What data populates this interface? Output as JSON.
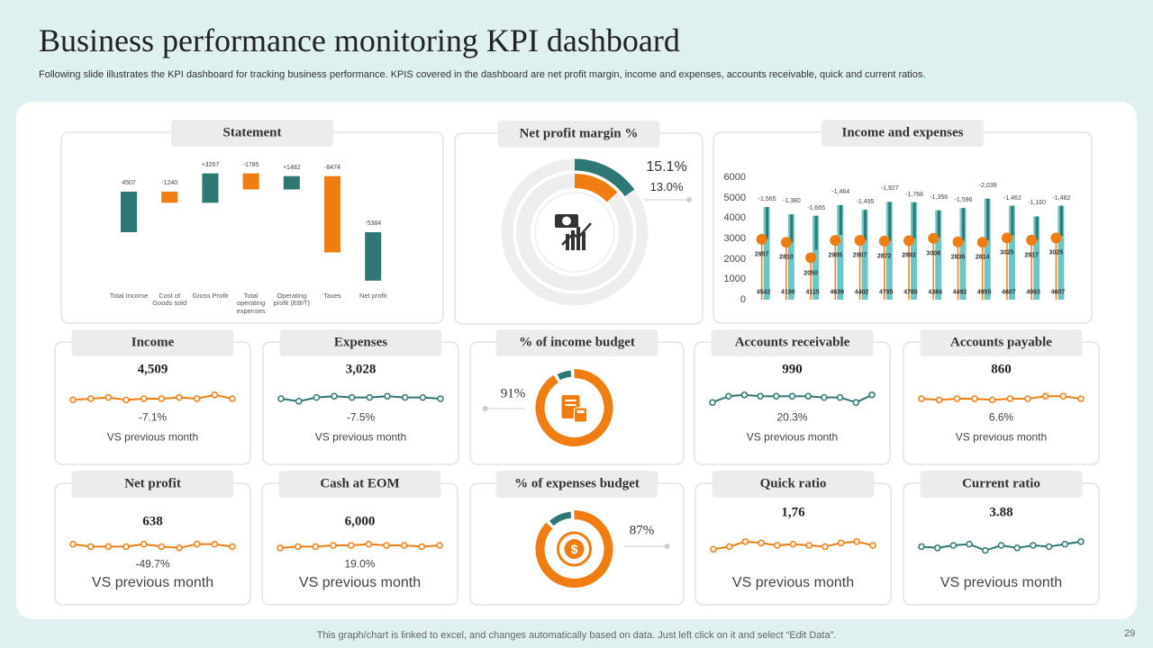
{
  "header": {
    "title": "Business performance monitoring KPI dashboard",
    "subtitle": "Following slide illustrates the KPI dashboard for tracking business performance. KPIS covered in the dashboard are net profit margin, income and expenses, accounts receivable, quick and current ratios."
  },
  "footer": {
    "note": "This graph/chart is linked to excel,  and changes automatically based on data. Just left click on it and select “Edit Data”.",
    "page": 29
  },
  "chart_data": [
    {
      "type": "waterfall",
      "title": "Statement",
      "categories": [
        "Total Income",
        "Cost of Goods sold",
        "Gross Profit",
        "Total operating expenses",
        "Operating profit (EBIT)",
        "Taxes",
        "Net profit"
      ],
      "values": [
        4507,
        -1240,
        3267,
        -1785,
        1482,
        -8474,
        -5384
      ],
      "value_labels": [
        "4507",
        "-1240",
        "+3267",
        "-1785",
        "+1482",
        "-8474",
        "-5384"
      ],
      "totals": [
        0,
        6
      ],
      "colors": {
        "increase": "#2f7775",
        "decrease": "#ef7d12",
        "total": "#2f7775"
      },
      "ylim": [
        -6000,
        7000
      ]
    },
    {
      "type": "ring",
      "title": "Net profit margin %",
      "values": [
        15.1,
        13.0
      ],
      "value_labels": [
        "15.1%",
        "13.0%"
      ],
      "colors": [
        "#2f7775",
        "#ef7d12"
      ]
    },
    {
      "type": "combo",
      "title": "Income and expenses",
      "ylim": [
        0,
        6000
      ],
      "yticks": [
        0,
        1000,
        2000,
        3000,
        4000,
        5000,
        6000
      ],
      "series": [
        {
          "color": "#6ec6c4",
          "values": [
            4542,
            4190,
            4115,
            4639,
            4402,
            4795,
            4780,
            4384,
            4492,
            4955,
            4607,
            4083,
            4607
          ]
        },
        {
          "color": "#2f7775",
          "values": [
            -1565,
            -1380,
            -1665,
            -1464,
            -1495,
            -1927,
            -1768,
            -1356,
            -1596,
            -2039,
            -1462,
            -1160,
            -1482
          ],
          "value_labels": [
            "-1,565",
            "-1,380",
            "-1,665",
            "-1,464",
            "-1,495",
            "-1,927",
            "-1,768",
            "-1,356",
            "-1,596",
            "-2,039",
            "-1,462",
            "-1,160",
            "-1,482"
          ]
        },
        {
          "color": "#ef7d12",
          "values": [
            2957,
            2810,
            2050,
            2905,
            2907,
            2872,
            2892,
            3008,
            2836,
            2814,
            3025,
            2917,
            3025
          ]
        }
      ]
    },
    {
      "type": "kpi",
      "title": "Income",
      "value": "4,509",
      "change": "-7.1%",
      "caption": "VS previous  month",
      "color": "#ef7d12",
      "trend": [
        4,
        5,
        6,
        4,
        5,
        5,
        6,
        5,
        8,
        5
      ]
    },
    {
      "type": "kpi",
      "title": "Expenses",
      "value": "3,028",
      "change": "-7.5%",
      "caption": "VS previous  month",
      "color": "#2f7775",
      "trend": [
        5,
        3,
        6,
        7,
        6,
        6,
        7,
        6,
        6,
        5
      ]
    },
    {
      "type": "gauge",
      "title": "% of income budget",
      "value": 91,
      "value_label": "91%",
      "color": "#ef7d12",
      "rest_color": "#2f7775"
    },
    {
      "type": "kpi",
      "title": "Accounts receivable",
      "value": "990",
      "change": "20.3%",
      "caption": "VS previous  month",
      "color": "#2f7775",
      "trend": [
        2,
        7,
        8,
        7,
        7,
        7,
        7,
        6,
        6,
        2,
        8
      ]
    },
    {
      "type": "kpi",
      "title": "Accounts payable",
      "value": "860",
      "change": "6.6%",
      "caption": "VS previous  month",
      "color": "#ef7d12",
      "trend": [
        5,
        4,
        5,
        5,
        4,
        5,
        5,
        7,
        7,
        5
      ]
    },
    {
      "type": "kpi",
      "title": "Net profit",
      "value": "638",
      "change": "-49.7%",
      "caption": "VS previous month",
      "color": "#ef7d12",
      "trend": [
        6,
        4,
        4,
        4,
        6,
        4,
        3,
        6,
        6,
        4
      ]
    },
    {
      "type": "kpi",
      "title": "Cash at EOM",
      "value": "6,000",
      "change": "19.0%",
      "caption": "VS previous month",
      "color": "#ef7d12",
      "trend": [
        3,
        4,
        4,
        5,
        5,
        6,
        5,
        5,
        4,
        5
      ]
    },
    {
      "type": "gauge",
      "title": "% of expenses budget",
      "value": 87,
      "value_label": "87%",
      "color": "#ef7d12",
      "rest_color": "#2f7775"
    },
    {
      "type": "kpi",
      "title": "Quick ratio",
      "value": "1,76",
      "caption": "VS previous month",
      "color": "#ef7d12",
      "trend": [
        2,
        4,
        8,
        7,
        5,
        6,
        5,
        4,
        7,
        8,
        5
      ]
    },
    {
      "type": "kpi",
      "title": "Current ratio",
      "value": "3.88",
      "caption": "VS previous month",
      "color": "#2f7775",
      "trend": [
        4,
        3,
        5,
        6,
        1,
        5,
        3,
        5,
        4,
        6,
        8
      ]
    }
  ]
}
